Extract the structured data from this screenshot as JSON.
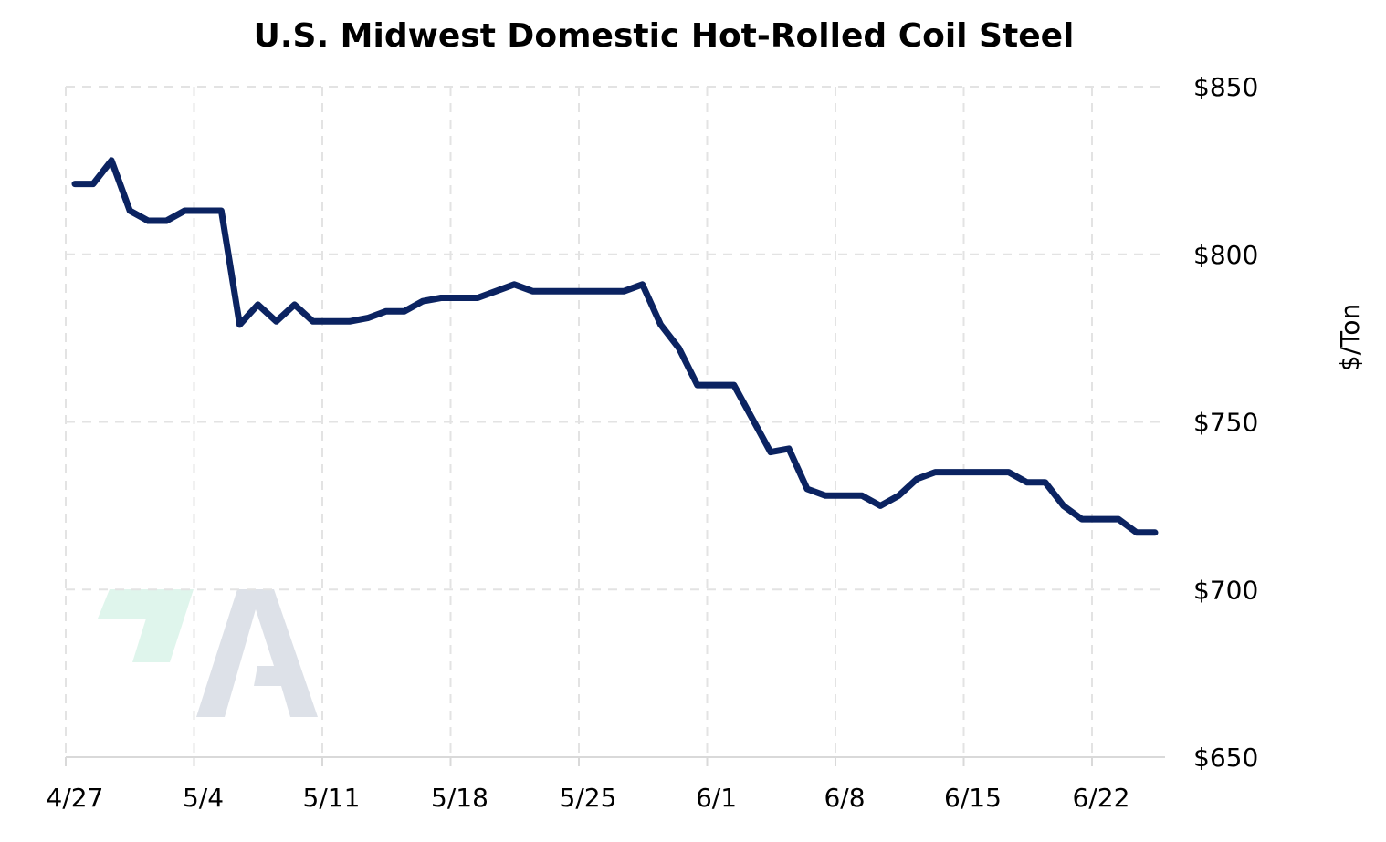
{
  "chart_data": {
    "type": "line",
    "title": "U.S. Midwest Domestic Hot-Rolled Coil Steel",
    "xlabel": "",
    "ylabel": "$/Ton",
    "ylim": [
      650,
      850
    ],
    "y_ticks": [
      850,
      800,
      750,
      700,
      650
    ],
    "y_tick_labels": [
      "$850",
      "$800",
      "$750",
      "$700",
      "$650"
    ],
    "x_ticks": [
      "2023-04-27",
      "2023-05-04",
      "2023-05-11",
      "2023-05-18",
      "2023-05-25",
      "2023-06-01",
      "2023-06-08",
      "2023-06-15",
      "2023-06-22"
    ],
    "x_tick_labels": [
      "4/27",
      "5/4",
      "5/11",
      "5/18",
      "5/25",
      "6/1",
      "6/8",
      "6/15",
      "6/22"
    ],
    "x_range": [
      "2023-04-27",
      "2023-06-30"
    ],
    "grid": true,
    "y_axis_position": "right",
    "colors": {
      "line": "#0b2361",
      "grid": "#e3e3e3",
      "axis": "#d9d9d9"
    },
    "series": [
      {
        "name": "",
        "x": [
          "2023-04-27",
          "2023-04-28",
          "2023-04-29",
          "2023-04-30",
          "2023-05-01",
          "2023-05-02",
          "2023-05-03",
          "2023-05-04",
          "2023-05-05",
          "2023-05-06",
          "2023-05-07",
          "2023-05-08",
          "2023-05-09",
          "2023-05-10",
          "2023-05-11",
          "2023-05-12",
          "2023-05-13",
          "2023-05-14",
          "2023-05-15",
          "2023-05-16",
          "2023-05-17",
          "2023-05-18",
          "2023-05-19",
          "2023-05-20",
          "2023-05-21",
          "2023-05-22",
          "2023-05-23",
          "2023-05-24",
          "2023-05-25",
          "2023-05-26",
          "2023-05-27",
          "2023-05-28",
          "2023-05-29",
          "2023-05-30",
          "2023-05-31",
          "2023-06-01",
          "2023-06-02",
          "2023-06-03",
          "2023-06-04",
          "2023-06-05",
          "2023-06-06",
          "2023-06-07",
          "2023-06-08",
          "2023-06-09",
          "2023-06-10",
          "2023-06-11",
          "2023-06-12",
          "2023-06-13",
          "2023-06-14",
          "2023-06-15",
          "2023-06-16",
          "2023-06-17",
          "2023-06-18",
          "2023-06-19",
          "2023-06-20",
          "2023-06-21",
          "2023-06-22",
          "2023-06-23",
          "2023-06-24",
          "2023-06-25"
        ],
        "values": [
          821,
          821,
          828,
          813,
          810,
          810,
          813,
          813,
          813,
          779,
          785,
          780,
          785,
          780,
          780,
          780,
          781,
          783,
          783,
          786,
          787,
          787,
          787,
          789,
          791,
          789,
          789,
          789,
          789,
          789,
          789,
          791,
          779,
          772,
          761,
          761,
          761,
          751,
          741,
          742,
          730,
          728,
          728,
          728,
          725,
          728,
          733,
          735,
          735,
          735,
          735,
          735,
          732,
          732,
          725,
          721,
          721,
          721,
          717,
          717
        ]
      }
    ]
  },
  "watermark": {
    "brand_colors": [
      "#dff5ec",
      "#dde1e8"
    ]
  }
}
